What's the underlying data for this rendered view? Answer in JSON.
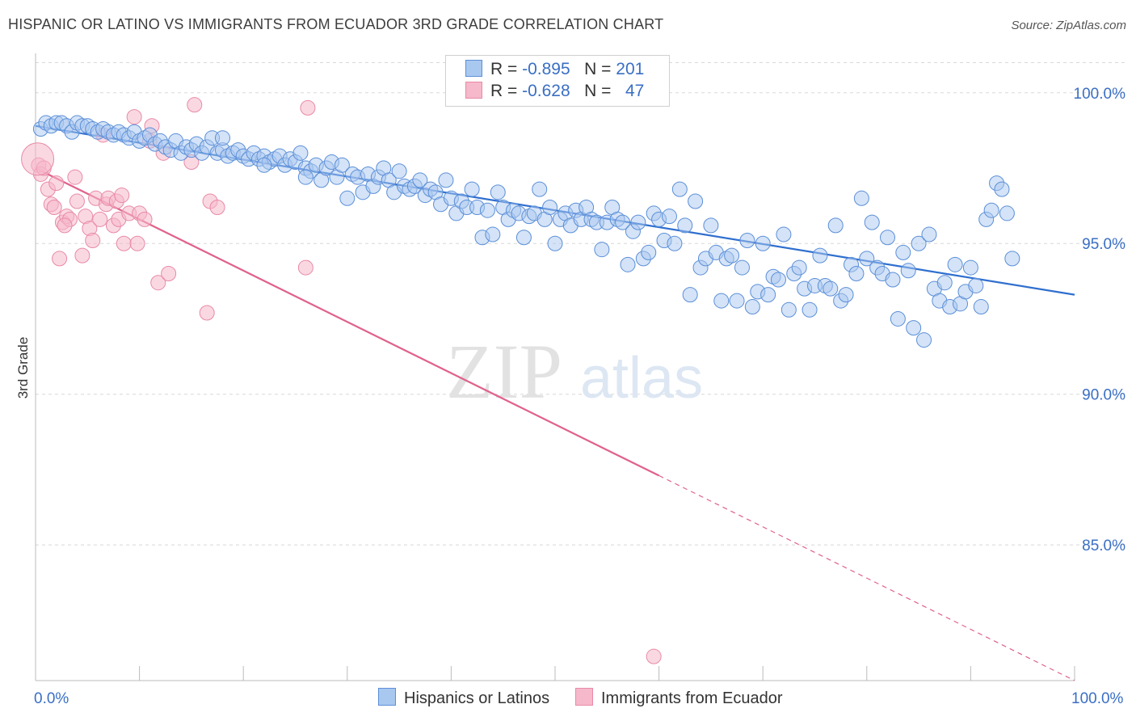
{
  "title": "HISPANIC OR LATINO VS IMMIGRANTS FROM ECUADOR 3RD GRADE CORRELATION CHART",
  "source": "Source: ZipAtlas.com",
  "watermark": {
    "zip": "ZIP",
    "atlas": "atlas"
  },
  "colors": {
    "blue_fill": "#a9c8f0",
    "blue_stroke": "#5b8fd8",
    "blue_line": "#2f6fcf",
    "pink_fill": "#f6b8cb",
    "pink_stroke": "#e88aa7",
    "pink_line": "#e0628a",
    "tick_text": "#3a6fc4",
    "grid": "#d8d8d8"
  },
  "stats": [
    {
      "r_label": "R = ",
      "r_value": "-0.895",
      "n_label": "N = ",
      "n_value": "201"
    },
    {
      "r_label": "R = ",
      "r_value": "-0.628",
      "n_label": "N = ",
      "n_value": "47"
    }
  ],
  "legend": [
    "Hispanics or Latinos",
    "Immigrants from Ecuador"
  ],
  "chart_data": {
    "type": "scatter",
    "title": "HISPANIC OR LATINO VS IMMIGRANTS FROM ECUADOR 3RD GRADE CORRELATION CHART",
    "xlabel": "",
    "ylabel": "3rd Grade",
    "xlim": [
      0,
      100
    ],
    "ylim": [
      80.5,
      101.2
    ],
    "x_tick_labels": [
      "0.0%",
      "100.0%"
    ],
    "y_ticks": [
      100,
      95,
      90,
      85
    ],
    "y_tick_labels": [
      "100.0%",
      "95.0%",
      "90.0%",
      "85.0%"
    ],
    "grid": "horizontal dashed",
    "legend_position": "bottom",
    "series": [
      {
        "name": "Hispanics or Latinos",
        "r": -0.895,
        "n": 201,
        "trend": {
          "x": [
            0,
            100
          ],
          "y": [
            98.9,
            93.3
          ]
        },
        "points": [
          [
            0.5,
            98.8
          ],
          [
            1.0,
            99.0
          ],
          [
            1.5,
            98.9
          ],
          [
            2.0,
            99.0
          ],
          [
            2.5,
            99.0
          ],
          [
            3.0,
            98.9
          ],
          [
            3.5,
            98.7
          ],
          [
            4.0,
            99.0
          ],
          [
            4.5,
            98.9
          ],
          [
            5.0,
            98.9
          ],
          [
            5.5,
            98.8
          ],
          [
            6.0,
            98.7
          ],
          [
            6.5,
            98.8
          ],
          [
            7.0,
            98.7
          ],
          [
            7.5,
            98.6
          ],
          [
            8.0,
            98.7
          ],
          [
            8.5,
            98.6
          ],
          [
            9.0,
            98.5
          ],
          [
            9.5,
            98.7
          ],
          [
            10.0,
            98.4
          ],
          [
            10.5,
            98.5
          ],
          [
            11.0,
            98.6
          ],
          [
            11.5,
            98.3
          ],
          [
            12.0,
            98.4
          ],
          [
            12.5,
            98.2
          ],
          [
            13.0,
            98.1
          ],
          [
            13.5,
            98.4
          ],
          [
            14.0,
            98.0
          ],
          [
            14.5,
            98.2
          ],
          [
            15.0,
            98.1
          ],
          [
            15.5,
            98.3
          ],
          [
            16.0,
            98.0
          ],
          [
            16.5,
            98.2
          ],
          [
            17.0,
            98.5
          ],
          [
            17.5,
            98.0
          ],
          [
            18.0,
            98.1
          ],
          [
            18.5,
            97.9
          ],
          [
            19.0,
            98.0
          ],
          [
            19.5,
            98.1
          ],
          [
            20.0,
            97.9
          ],
          [
            20.5,
            97.8
          ],
          [
            21.0,
            98.0
          ],
          [
            21.5,
            97.8
          ],
          [
            22.0,
            97.9
          ],
          [
            22.5,
            97.7
          ],
          [
            23.0,
            97.8
          ],
          [
            23.5,
            97.9
          ],
          [
            24.0,
            97.6
          ],
          [
            24.5,
            97.8
          ],
          [
            25.0,
            97.7
          ],
          [
            25.5,
            98.0
          ],
          [
            26.0,
            97.5
          ],
          [
            26.5,
            97.4
          ],
          [
            27.0,
            97.6
          ],
          [
            27.5,
            97.1
          ],
          [
            28.0,
            97.5
          ],
          [
            28.5,
            97.7
          ],
          [
            29.0,
            97.2
          ],
          [
            29.5,
            97.6
          ],
          [
            30.0,
            96.5
          ],
          [
            30.5,
            97.3
          ],
          [
            31.0,
            97.2
          ],
          [
            31.5,
            96.7
          ],
          [
            32.0,
            97.3
          ],
          [
            32.5,
            96.9
          ],
          [
            33.0,
            97.2
          ],
          [
            33.5,
            97.5
          ],
          [
            34.0,
            97.1
          ],
          [
            34.5,
            96.7
          ],
          [
            35.0,
            97.4
          ],
          [
            35.5,
            96.9
          ],
          [
            36.0,
            96.8
          ],
          [
            36.5,
            96.9
          ],
          [
            37.0,
            97.1
          ],
          [
            37.5,
            96.6
          ],
          [
            38.0,
            96.8
          ],
          [
            38.5,
            96.7
          ],
          [
            39.0,
            96.3
          ],
          [
            39.5,
            97.1
          ],
          [
            40.0,
            96.5
          ],
          [
            40.5,
            96.0
          ],
          [
            41.0,
            96.4
          ],
          [
            41.5,
            96.2
          ],
          [
            42.0,
            96.8
          ],
          [
            42.5,
            96.2
          ],
          [
            43.0,
            95.2
          ],
          [
            43.5,
            96.1
          ],
          [
            44.0,
            95.3
          ],
          [
            44.5,
            96.7
          ],
          [
            45.0,
            96.2
          ],
          [
            45.5,
            95.8
          ],
          [
            46.0,
            96.1
          ],
          [
            46.5,
            96.0
          ],
          [
            47.0,
            95.2
          ],
          [
            47.5,
            95.9
          ],
          [
            48.0,
            96.0
          ],
          [
            48.5,
            96.8
          ],
          [
            49.0,
            95.8
          ],
          [
            49.5,
            96.2
          ],
          [
            50.0,
            95.0
          ],
          [
            50.5,
            95.8
          ],
          [
            51.0,
            96.0
          ],
          [
            51.5,
            95.6
          ],
          [
            52.0,
            96.1
          ],
          [
            52.5,
            95.8
          ],
          [
            53.0,
            96.2
          ],
          [
            53.5,
            95.8
          ],
          [
            54.0,
            95.7
          ],
          [
            54.5,
            94.8
          ],
          [
            55.0,
            95.7
          ],
          [
            55.5,
            96.2
          ],
          [
            56.0,
            95.8
          ],
          [
            56.5,
            95.7
          ],
          [
            57.0,
            94.3
          ],
          [
            57.5,
            95.4
          ],
          [
            58.0,
            95.7
          ],
          [
            58.5,
            94.5
          ],
          [
            59.0,
            94.7
          ],
          [
            59.5,
            96.0
          ],
          [
            60.0,
            95.8
          ],
          [
            60.5,
            95.1
          ],
          [
            61.0,
            95.9
          ],
          [
            61.5,
            95.0
          ],
          [
            62.0,
            96.8
          ],
          [
            62.5,
            95.6
          ],
          [
            63.0,
            93.3
          ],
          [
            63.5,
            96.4
          ],
          [
            64.0,
            94.2
          ],
          [
            64.5,
            94.5
          ],
          [
            65.0,
            95.6
          ],
          [
            65.5,
            94.7
          ],
          [
            66.0,
            93.1
          ],
          [
            66.5,
            94.5
          ],
          [
            67.0,
            94.6
          ],
          [
            67.5,
            93.1
          ],
          [
            68.0,
            94.2
          ],
          [
            68.5,
            95.1
          ],
          [
            69.0,
            92.9
          ],
          [
            69.5,
            93.4
          ],
          [
            70.0,
            95.0
          ],
          [
            70.5,
            93.3
          ],
          [
            71.0,
            93.9
          ],
          [
            71.5,
            93.8
          ],
          [
            72.0,
            95.3
          ],
          [
            72.5,
            92.8
          ],
          [
            73.0,
            94.0
          ],
          [
            73.5,
            94.2
          ],
          [
            74.0,
            93.5
          ],
          [
            74.5,
            92.8
          ],
          [
            75.0,
            93.6
          ],
          [
            75.5,
            94.6
          ],
          [
            76.0,
            93.6
          ],
          [
            76.5,
            93.5
          ],
          [
            77.0,
            95.6
          ],
          [
            77.5,
            93.1
          ],
          [
            78.0,
            93.3
          ],
          [
            78.5,
            94.3
          ],
          [
            79.0,
            94.0
          ],
          [
            79.5,
            96.5
          ],
          [
            80.0,
            94.5
          ],
          [
            80.5,
            95.7
          ],
          [
            81.0,
            94.2
          ],
          [
            81.5,
            94.0
          ],
          [
            82.0,
            95.2
          ],
          [
            82.5,
            93.8
          ],
          [
            83.0,
            92.5
          ],
          [
            83.5,
            94.7
          ],
          [
            84.0,
            94.1
          ],
          [
            84.5,
            92.2
          ],
          [
            85.0,
            95.0
          ],
          [
            85.5,
            91.8
          ],
          [
            86.0,
            95.3
          ],
          [
            86.5,
            93.5
          ],
          [
            87.0,
            93.1
          ],
          [
            87.5,
            93.7
          ],
          [
            88.0,
            92.9
          ],
          [
            88.5,
            94.3
          ],
          [
            89.0,
            93.0
          ],
          [
            89.5,
            93.4
          ],
          [
            90.0,
            94.2
          ],
          [
            90.5,
            93.6
          ],
          [
            91.0,
            92.9
          ],
          [
            91.5,
            95.8
          ],
          [
            92.0,
            96.1
          ],
          [
            92.5,
            97.0
          ],
          [
            93.0,
            96.8
          ],
          [
            93.5,
            96.0
          ],
          [
            94.0,
            94.5
          ],
          [
            18.0,
            98.5
          ],
          [
            22.0,
            97.6
          ],
          [
            26.0,
            97.2
          ]
        ]
      },
      {
        "name": "Immigrants from Ecuador",
        "r": -0.628,
        "n": 47,
        "trend": {
          "x": [
            0,
            60
          ],
          "y": [
            97.5,
            87.3
          ]
        },
        "trend_dashed": {
          "x": [
            60,
            100
          ],
          "y": [
            87.3,
            80.5
          ]
        },
        "points": [
          [
            0.3,
            97.6
          ],
          [
            0.5,
            97.3
          ],
          [
            0.8,
            97.5
          ],
          [
            1.2,
            96.8
          ],
          [
            1.5,
            96.3
          ],
          [
            1.8,
            96.2
          ],
          [
            2.0,
            97.0
          ],
          [
            2.3,
            94.5
          ],
          [
            2.6,
            95.7
          ],
          [
            3.0,
            95.9
          ],
          [
            3.3,
            95.8
          ],
          [
            3.8,
            97.2
          ],
          [
            4.0,
            96.4
          ],
          [
            4.5,
            94.6
          ],
          [
            4.8,
            95.9
          ],
          [
            5.2,
            95.5
          ],
          [
            5.5,
            95.1
          ],
          [
            5.8,
            96.5
          ],
          [
            6.2,
            95.8
          ],
          [
            6.5,
            98.6
          ],
          [
            6.8,
            96.3
          ],
          [
            7.0,
            96.5
          ],
          [
            7.5,
            95.6
          ],
          [
            7.8,
            96.4
          ],
          [
            8.0,
            95.8
          ],
          [
            8.3,
            96.6
          ],
          [
            8.5,
            95.0
          ],
          [
            9.0,
            96.0
          ],
          [
            9.5,
            99.2
          ],
          [
            9.8,
            95.0
          ],
          [
            10.0,
            96.0
          ],
          [
            10.5,
            95.8
          ],
          [
            11.0,
            98.4
          ],
          [
            11.2,
            98.9
          ],
          [
            11.8,
            93.7
          ],
          [
            12.3,
            98.0
          ],
          [
            12.8,
            94.0
          ],
          [
            15.0,
            97.7
          ],
          [
            15.3,
            99.6
          ],
          [
            16.5,
            92.7
          ],
          [
            16.8,
            96.4
          ],
          [
            17.5,
            96.2
          ],
          [
            26.0,
            94.2
          ],
          [
            26.2,
            99.5
          ],
          [
            59.5,
            81.3
          ],
          [
            0.2,
            97.8
          ],
          [
            2.8,
            95.6
          ]
        ]
      }
    ]
  }
}
